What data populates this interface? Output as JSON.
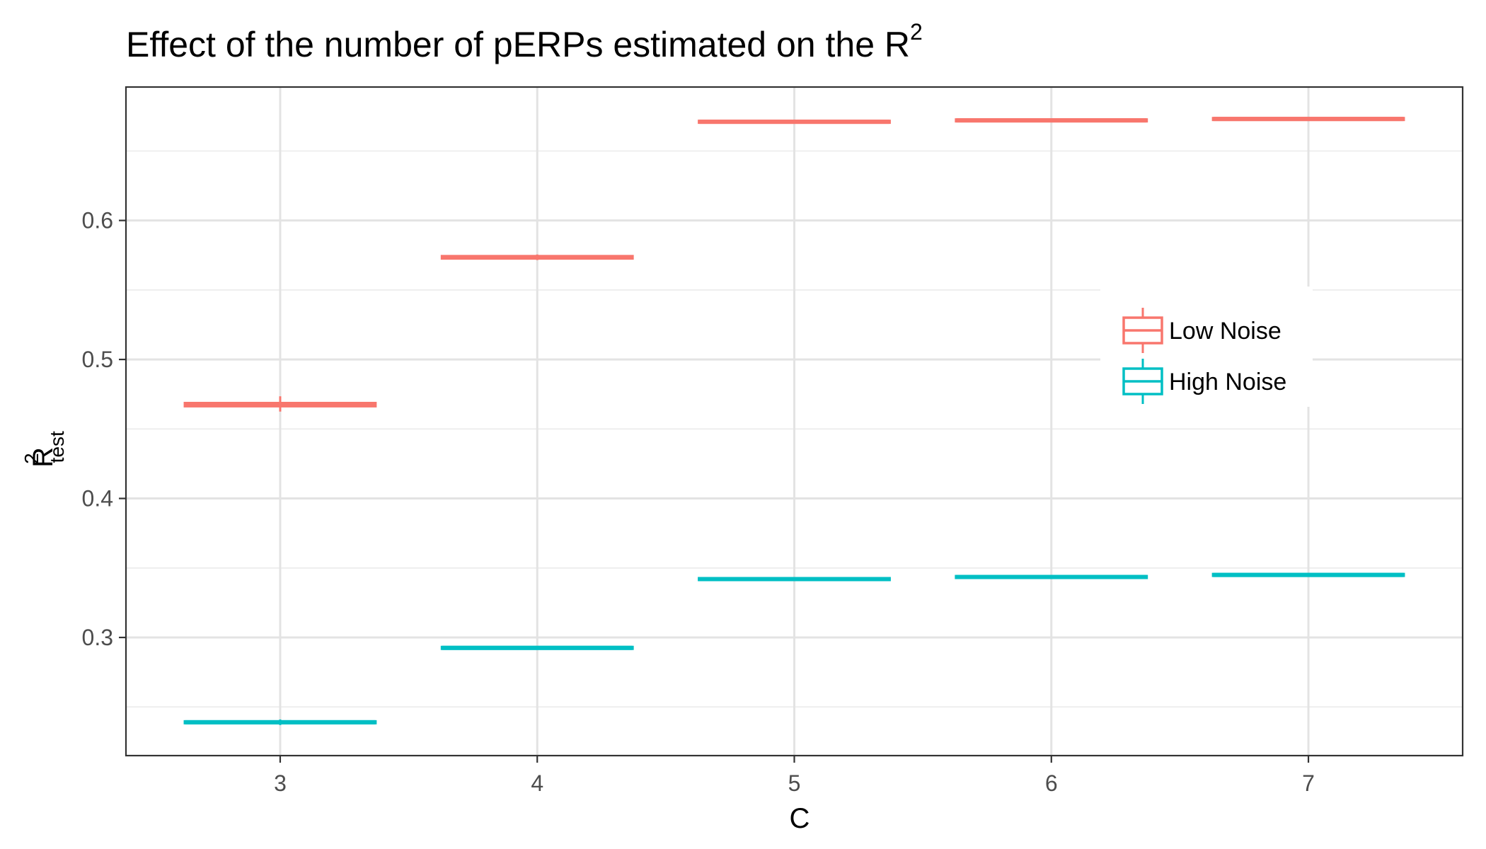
{
  "chart_data": {
    "type": "boxplot",
    "title": "Effect of the number of pERPs estimated on the R",
    "title_superscript": "2",
    "xlabel": "C",
    "ylabel_main": "R",
    "ylabel_superscript": "2",
    "ylabel_subscript": "test",
    "categories": [
      "3",
      "4",
      "5",
      "6",
      "7"
    ],
    "ylim": [
      0.215,
      0.696
    ],
    "yticks": [
      0.3,
      0.4,
      0.5,
      0.6
    ],
    "ytick_labels": [
      "0.3",
      "0.4",
      "0.5",
      "0.6"
    ],
    "grid": true,
    "legend_position": "right-inside",
    "series": [
      {
        "name": "Low Noise",
        "color": "#F8766D",
        "boxes": [
          {
            "x": "3",
            "min": 0.4625,
            "q1": 0.4665,
            "median": 0.4675,
            "q3": 0.4685,
            "max": 0.4735
          },
          {
            "x": "4",
            "min": 0.5715,
            "q1": 0.5728,
            "median": 0.5735,
            "q3": 0.5742,
            "max": 0.5755
          },
          {
            "x": "5",
            "min": 0.67,
            "q1": 0.6705,
            "median": 0.671,
            "q3": 0.6715,
            "max": 0.672
          },
          {
            "x": "6",
            "min": 0.671,
            "q1": 0.6715,
            "median": 0.672,
            "q3": 0.6725,
            "max": 0.673
          },
          {
            "x": "7",
            "min": 0.672,
            "q1": 0.6725,
            "median": 0.673,
            "q3": 0.6735,
            "max": 0.674
          }
        ]
      },
      {
        "name": "High Noise",
        "color": "#00BFC4",
        "boxes": [
          {
            "x": "3",
            "min": 0.237,
            "q1": 0.2385,
            "median": 0.239,
            "q3": 0.2395,
            "max": 0.241
          },
          {
            "x": "4",
            "min": 0.2915,
            "q1": 0.292,
            "median": 0.2925,
            "q3": 0.293,
            "max": 0.2935
          },
          {
            "x": "5",
            "min": 0.341,
            "q1": 0.3415,
            "median": 0.342,
            "q3": 0.3425,
            "max": 0.343
          },
          {
            "x": "6",
            "min": 0.3425,
            "q1": 0.343,
            "median": 0.3435,
            "q3": 0.344,
            "max": 0.3445
          },
          {
            "x": "7",
            "min": 0.344,
            "q1": 0.3445,
            "median": 0.345,
            "q3": 0.3455,
            "max": 0.346
          }
        ]
      }
    ]
  }
}
